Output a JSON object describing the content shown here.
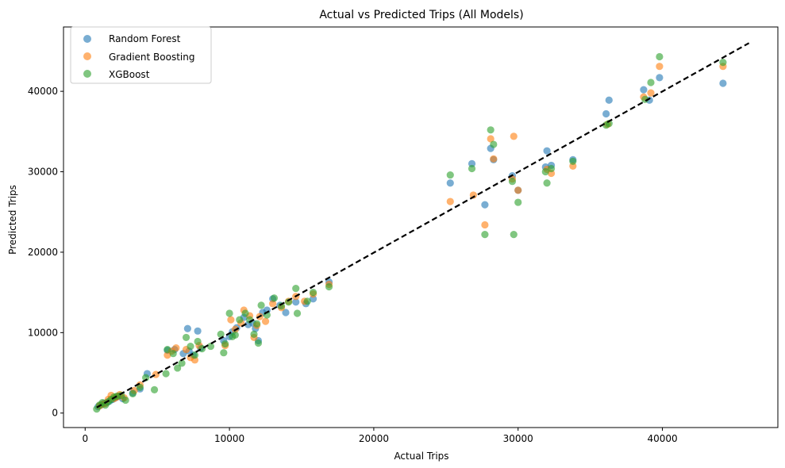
{
  "chart_data": {
    "type": "scatter",
    "title": "Actual vs Predicted Trips (All Models)",
    "xlabel": "Actual Trips",
    "ylabel": "Predicted Trips",
    "xlim": [
      -1500,
      48000
    ],
    "ylim": [
      -1800,
      48000
    ],
    "xticks": [
      0,
      10000,
      20000,
      30000,
      40000
    ],
    "yticks": [
      0,
      10000,
      20000,
      30000,
      40000
    ],
    "grid": false,
    "legend_position": "top-left",
    "reference_line": {
      "style": "dashed",
      "color": "#000000",
      "from": [
        800,
        700
      ],
      "to": [
        46000,
        46000
      ]
    },
    "series": [
      {
        "name": "Random Forest",
        "color": "#1f77b4",
        "points": [
          [
            900,
            800
          ],
          [
            1100,
            1000
          ],
          [
            1300,
            1200
          ],
          [
            1500,
            1300
          ],
          [
            1700,
            1500
          ],
          [
            1900,
            1700
          ],
          [
            2100,
            1900
          ],
          [
            2300,
            2100
          ],
          [
            2600,
            1800
          ],
          [
            3300,
            2500
          ],
          [
            3800,
            3000
          ],
          [
            4300,
            4900
          ],
          [
            5700,
            7800
          ],
          [
            6200,
            7900
          ],
          [
            6800,
            7400
          ],
          [
            7100,
            10500
          ],
          [
            7200,
            7700
          ],
          [
            7500,
            7200
          ],
          [
            7800,
            10200
          ],
          [
            8000,
            8100
          ],
          [
            9600,
            9000
          ],
          [
            10000,
            9500
          ],
          [
            10200,
            10100
          ],
          [
            10500,
            10600
          ],
          [
            11000,
            11900
          ],
          [
            11300,
            11000
          ],
          [
            11600,
            11200
          ],
          [
            11800,
            10500
          ],
          [
            12000,
            9000
          ],
          [
            12300,
            12500
          ],
          [
            12600,
            12800
          ],
          [
            13000,
            14200
          ],
          [
            13500,
            13400
          ],
          [
            13900,
            12500
          ],
          [
            14600,
            13800
          ],
          [
            15300,
            13600
          ],
          [
            15800,
            14200
          ],
          [
            16900,
            16300
          ],
          [
            25300,
            28600
          ],
          [
            26800,
            31000
          ],
          [
            27700,
            25900
          ],
          [
            28100,
            32900
          ],
          [
            28300,
            31500
          ],
          [
            29600,
            29500
          ],
          [
            30000,
            27700
          ],
          [
            31900,
            30600
          ],
          [
            32000,
            32600
          ],
          [
            32300,
            30800
          ],
          [
            33800,
            31500
          ],
          [
            36100,
            37200
          ],
          [
            36300,
            38900
          ],
          [
            38700,
            40200
          ],
          [
            39100,
            38900
          ],
          [
            39800,
            41700
          ],
          [
            44200,
            41000
          ]
        ]
      },
      {
        "name": "Gradient Boosting",
        "color": "#ff7f0e",
        "points": [
          [
            1000,
            900
          ],
          [
            1200,
            1100
          ],
          [
            1400,
            1200
          ],
          [
            1600,
            1700
          ],
          [
            1800,
            2200
          ],
          [
            2000,
            1800
          ],
          [
            2200,
            2000
          ],
          [
            2400,
            2300
          ],
          [
            2700,
            1900
          ],
          [
            3400,
            2800
          ],
          [
            3800,
            3500
          ],
          [
            4900,
            4800
          ],
          [
            5700,
            7200
          ],
          [
            6000,
            7700
          ],
          [
            6300,
            8100
          ],
          [
            7000,
            7900
          ],
          [
            7300,
            6900
          ],
          [
            7600,
            6600
          ],
          [
            7900,
            8400
          ],
          [
            9700,
            8400
          ],
          [
            10100,
            11600
          ],
          [
            10400,
            10400
          ],
          [
            10800,
            11200
          ],
          [
            11000,
            12800
          ],
          [
            11400,
            12100
          ],
          [
            11700,
            9400
          ],
          [
            11900,
            10900
          ],
          [
            12100,
            12000
          ],
          [
            12500,
            11400
          ],
          [
            13000,
            13600
          ],
          [
            13600,
            13100
          ],
          [
            14100,
            13900
          ],
          [
            14600,
            14500
          ],
          [
            15200,
            13900
          ],
          [
            15800,
            14800
          ],
          [
            16900,
            16000
          ],
          [
            25300,
            26300
          ],
          [
            26900,
            27100
          ],
          [
            27700,
            23400
          ],
          [
            28100,
            34100
          ],
          [
            28300,
            31600
          ],
          [
            29600,
            29100
          ],
          [
            29700,
            34400
          ],
          [
            30000,
            27700
          ],
          [
            32000,
            30300
          ],
          [
            32300,
            29800
          ],
          [
            33800,
            30700
          ],
          [
            36200,
            35900
          ],
          [
            38700,
            39300
          ],
          [
            39200,
            39800
          ],
          [
            39800,
            43100
          ],
          [
            44200,
            43100
          ]
        ]
      },
      {
        "name": "XGBoost",
        "color": "#2ca02c",
        "points": [
          [
            800,
            500
          ],
          [
            1000,
            1000
          ],
          [
            1200,
            1300
          ],
          [
            1400,
            1000
          ],
          [
            1600,
            1400
          ],
          [
            1800,
            1700
          ],
          [
            2000,
            2000
          ],
          [
            2200,
            2100
          ],
          [
            2500,
            2200
          ],
          [
            2800,
            1600
          ],
          [
            3300,
            2400
          ],
          [
            3800,
            3200
          ],
          [
            4200,
            4400
          ],
          [
            4800,
            2900
          ],
          [
            5600,
            4900
          ],
          [
            5700,
            7900
          ],
          [
            6100,
            7400
          ],
          [
            6400,
            5600
          ],
          [
            6700,
            6200
          ],
          [
            7000,
            9400
          ],
          [
            7300,
            8300
          ],
          [
            7600,
            7200
          ],
          [
            7800,
            8900
          ],
          [
            8100,
            8000
          ],
          [
            8700,
            8300
          ],
          [
            9400,
            9800
          ],
          [
            9600,
            7500
          ],
          [
            9700,
            8600
          ],
          [
            10000,
            12400
          ],
          [
            10200,
            9500
          ],
          [
            10400,
            9700
          ],
          [
            10700,
            11600
          ],
          [
            11100,
            12400
          ],
          [
            11400,
            11600
          ],
          [
            11700,
            9800
          ],
          [
            11900,
            11100
          ],
          [
            12000,
            8700
          ],
          [
            12200,
            13400
          ],
          [
            12600,
            12200
          ],
          [
            13100,
            14300
          ],
          [
            13600,
            13300
          ],
          [
            14100,
            13800
          ],
          [
            14600,
            15500
          ],
          [
            14700,
            12400
          ],
          [
            15400,
            13900
          ],
          [
            15800,
            15000
          ],
          [
            16900,
            15700
          ],
          [
            25300,
            29600
          ],
          [
            26800,
            30400
          ],
          [
            27700,
            22200
          ],
          [
            28100,
            35200
          ],
          [
            28300,
            33400
          ],
          [
            29600,
            28800
          ],
          [
            29700,
            22200
          ],
          [
            30000,
            26200
          ],
          [
            31900,
            30000
          ],
          [
            32000,
            28600
          ],
          [
            32300,
            30400
          ],
          [
            33800,
            31300
          ],
          [
            36100,
            35800
          ],
          [
            36300,
            36000
          ],
          [
            38800,
            39000
          ],
          [
            39200,
            41100
          ],
          [
            39800,
            44300
          ],
          [
            44200,
            43600
          ]
        ]
      }
    ]
  }
}
